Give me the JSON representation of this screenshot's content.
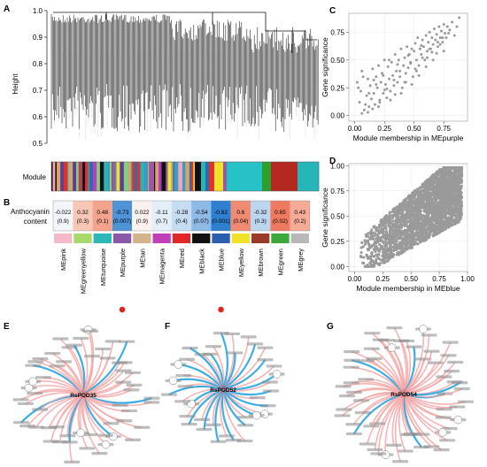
{
  "panels": {
    "a": "A",
    "b": "B",
    "c": "C",
    "d": "D",
    "e": "E",
    "f": "F",
    "g": "G"
  },
  "dendrogram": {
    "ylabel": "Height",
    "yticks": [
      "1.0",
      "0.9",
      "0.8",
      "0.7",
      "0.6",
      "0.5"
    ],
    "module_label": "Module",
    "module_colors": [
      "#3b9ac8",
      "#e8eb36",
      "#9b5aa0",
      "#f4a6b8",
      "#26b5b8",
      "#111111",
      "#e03030",
      "#2a6ea8",
      "#d6a36a",
      "#7fd17f",
      "#5b3e96",
      "#c13ac0",
      "#f2e12a",
      "#26c2c7",
      "#18a3a3",
      "#2aa3a8",
      "#1f9fa6",
      "#33b8bb",
      "#2d9f2d",
      "#b5281f",
      "#c9c9c9"
    ]
  },
  "heatmap": {
    "ylabel_line1": "Anthocyanin",
    "ylabel_line2": "content",
    "markers_on": [
      "MEpurple",
      "MEblue"
    ],
    "marker_color": "#e0231d",
    "cells": [
      {
        "module": "MEpink",
        "value": "-0.022",
        "p": "(0.9)",
        "fill": "#f2f6fb",
        "swatch": "#f4b8c8"
      },
      {
        "module": "MEgreenyellow",
        "value": "0.32",
        "p": "(0.3)",
        "fill": "#f8c6b4",
        "swatch": "#a8d96a"
      },
      {
        "module": "MEturquoise",
        "value": "0.48",
        "p": "(0.1)",
        "fill": "#f4a38c",
        "swatch": "#2cb8b8"
      },
      {
        "module": "MEpurple",
        "value": "-0.73",
        "p": "(0.007)",
        "fill": "#4d93d6",
        "swatch": "#8a5aa8"
      },
      {
        "module": "MEtan",
        "value": "0.022",
        "p": "(0.9)",
        "fill": "#fbf2ef",
        "swatch": "#d2b48c"
      },
      {
        "module": "MEmagenta",
        "value": "-0.11",
        "p": "(0.7)",
        "fill": "#e3eef9",
        "swatch": "#c040b8"
      },
      {
        "module": "MEred",
        "value": "-0.28",
        "p": "(0.4)",
        "fill": "#c6dcf1",
        "swatch": "#e02828"
      },
      {
        "module": "MEblack",
        "value": "-0.54",
        "p": "(0.07)",
        "fill": "#8ebbe6",
        "swatch": "#111111"
      },
      {
        "module": "MEblue",
        "value": "-0.82",
        "p": "(0.001)",
        "fill": "#2f7fcf",
        "swatch": "#2a5fb0"
      },
      {
        "module": "MEyellow",
        "value": "0.6",
        "p": "(0.04)",
        "fill": "#f08a70",
        "swatch": "#f2e12a"
      },
      {
        "module": "MEbrown",
        "value": "-0.32",
        "p": "(0.3)",
        "fill": "#bcd6ef",
        "swatch": "#9a3a2a"
      },
      {
        "module": "MEgreen",
        "value": "0.65",
        "p": "(0.02)",
        "fill": "#ee7b60",
        "swatch": "#3aa83a"
      },
      {
        "module": "MEgrey",
        "value": "0.43",
        "p": "(0.2)",
        "fill": "#f5ab95",
        "swatch": "#b8b8b8"
      }
    ]
  },
  "chart_data": [
    {
      "panel": "C",
      "type": "scatter",
      "xlabel": "Module membership in MEpurple",
      "ylabel": "Gene significance",
      "xlim": [
        -0.05,
        0.95
      ],
      "ylim": [
        -0.05,
        0.92
      ],
      "xticks": [
        "0.00",
        "0.25",
        "0.50",
        "0.75"
      ],
      "yticks": [
        "0.00",
        "0.25",
        "0.50",
        "0.75"
      ],
      "point_color": "#9a9a9a",
      "x": [
        0.02,
        0.04,
        0.05,
        0.06,
        0.08,
        0.1,
        0.11,
        0.12,
        0.13,
        0.14,
        0.15,
        0.16,
        0.17,
        0.18,
        0.19,
        0.2,
        0.21,
        0.22,
        0.23,
        0.24,
        0.25,
        0.26,
        0.27,
        0.28,
        0.29,
        0.3,
        0.31,
        0.32,
        0.33,
        0.34,
        0.35,
        0.36,
        0.37,
        0.38,
        0.39,
        0.4,
        0.41,
        0.42,
        0.43,
        0.44,
        0.45,
        0.46,
        0.47,
        0.48,
        0.49,
        0.5,
        0.51,
        0.52,
        0.53,
        0.54,
        0.55,
        0.56,
        0.57,
        0.58,
        0.59,
        0.6,
        0.61,
        0.62,
        0.63,
        0.64,
        0.65,
        0.66,
        0.67,
        0.68,
        0.69,
        0.7,
        0.71,
        0.72,
        0.73,
        0.74,
        0.75,
        0.76,
        0.77,
        0.78,
        0.8,
        0.82,
        0.84,
        0.86,
        0.88,
        0.06,
        0.09,
        0.12,
        0.15,
        0.18,
        0.21,
        0.24,
        0.27,
        0.3,
        0.33,
        0.36,
        0.39,
        0.42,
        0.45,
        0.48,
        0.51,
        0.54,
        0.57,
        0.6,
        0.63,
        0.66,
        0.69,
        0.72,
        0.75,
        0.03,
        0.07,
        0.11,
        0.16,
        0.2,
        0.25,
        0.29,
        0.34,
        0.38,
        0.43,
        0.47,
        0.52,
        0.56,
        0.61,
        0.65,
        0.7,
        0.74,
        0.79
      ],
      "y": [
        0.3,
        0.12,
        0.22,
        0.4,
        0.05,
        0.18,
        0.33,
        0.08,
        0.27,
        0.15,
        0.42,
        0.2,
        0.1,
        0.35,
        0.25,
        0.45,
        0.14,
        0.3,
        0.38,
        0.2,
        0.5,
        0.28,
        0.16,
        0.44,
        0.33,
        0.22,
        0.48,
        0.36,
        0.27,
        0.55,
        0.4,
        0.3,
        0.5,
        0.35,
        0.6,
        0.25,
        0.45,
        0.52,
        0.38,
        0.62,
        0.43,
        0.55,
        0.48,
        0.6,
        0.35,
        0.58,
        0.65,
        0.5,
        0.7,
        0.45,
        0.6,
        0.55,
        0.68,
        0.62,
        0.5,
        0.72,
        0.58,
        0.66,
        0.75,
        0.6,
        0.7,
        0.64,
        0.78,
        0.68,
        0.73,
        0.62,
        0.8,
        0.7,
        0.76,
        0.66,
        0.82,
        0.74,
        0.7,
        0.8,
        0.77,
        0.84,
        0.72,
        0.8,
        0.88,
        0.02,
        0.1,
        0.2,
        0.06,
        0.28,
        0.12,
        0.36,
        0.24,
        0.14,
        0.32,
        0.46,
        0.2,
        0.3,
        0.54,
        0.28,
        0.42,
        0.36,
        0.52,
        0.44,
        0.6,
        0.5,
        0.56,
        0.64,
        0.58,
        0.25,
        0.35,
        0.03,
        0.32,
        0.08,
        0.23,
        0.5,
        0.19,
        0.4,
        0.3,
        0.47,
        0.4,
        0.63,
        0.52,
        0.57,
        0.66,
        0.7,
        0.74
      ]
    },
    {
      "panel": "D",
      "type": "scatter",
      "xlabel": "Module membership in MEblue",
      "ylabel": "Gene significance",
      "xlim": [
        -0.05,
        1.0
      ],
      "ylim": [
        -0.05,
        1.02
      ],
      "xticks": [
        "0.00",
        "0.25",
        "0.50",
        "0.75",
        "1.00"
      ],
      "yticks": [
        "0.00",
        "0.25",
        "0.50",
        "0.75",
        "1.00"
      ],
      "point_color": "#9a9a9a",
      "note_points": "dense cloud concentrated between x 0.4-0.95 and y 0.3-0.95"
    }
  ],
  "networks": [
    {
      "panel": "E",
      "hub": "RsPOD35",
      "spokes": 56,
      "blue_spokes": 7
    },
    {
      "panel": "F",
      "hub": "RsPOD52",
      "spokes": 38,
      "blue_spokes": 16
    },
    {
      "panel": "G",
      "hub": "RsPOD54",
      "spokes": 62,
      "blue_spokes": 5
    }
  ]
}
